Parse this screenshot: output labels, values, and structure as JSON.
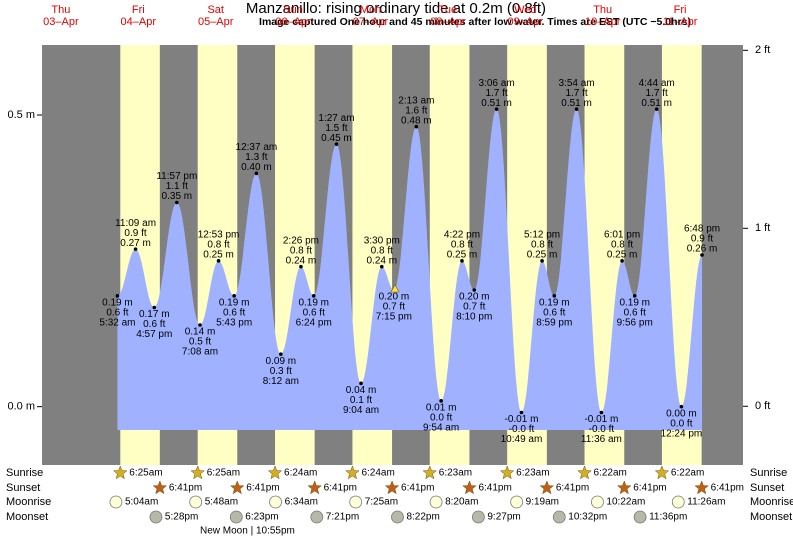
{
  "chart_data": {
    "type": "tide",
    "title": "Manzanillo: rising  ordinary tide at 0.2m (0.8ft)",
    "subtitle": "Image captured One hour and 45 minutes after low water. Times are EST (UTC −5.0hrs)",
    "ylim": [
      -0.1,
      0.62
    ],
    "yticks": [
      {
        "value": 0,
        "label": "0.0 m"
      },
      {
        "value": 0.5,
        "label": "0.5 m"
      }
    ],
    "y2lim": [
      -0.33,
      2.03
    ],
    "y2ticks": [
      {
        "value": 0,
        "label": "0 ft"
      },
      {
        "value": 1,
        "label": "1 ft"
      },
      {
        "value": 2,
        "label": "2 ft"
      }
    ],
    "row_labels": {
      "sunrise": "Sunrise",
      "sunset": "Sunset",
      "moonrise": "Moonrise",
      "moonset": "Moonset"
    },
    "new_moon": "New Moon | 10:55pm",
    "days": [
      {
        "name": "Thu",
        "date": "03–Apr"
      },
      {
        "name": "Fri",
        "date": "04–Apr",
        "sunrise": "6:25am",
        "sunset": "6:41pm",
        "moonrise": "5:04am",
        "moonset": "5:28pm",
        "tides": {
          "times": [
            "5:32 am",
            "11:09 am",
            "4:57 pm",
            "11:57 pm"
          ],
          "values": [
            0.19,
            0.27,
            0.17,
            0.35
          ],
          "value_labels": [
            "0.19 m",
            "0.27 m",
            "0.17 m",
            "0.35 m"
          ],
          "ft_labels": [
            "0.6 ft",
            "0.9 ft",
            "0.6 ft",
            "1.1 ft"
          ]
        }
      },
      {
        "name": "Sat",
        "date": "05–Apr",
        "sunrise": "6:25am",
        "sunset": "6:41pm",
        "moonrise": "5:48am",
        "moonset": "6:23pm",
        "tides": {
          "times": [
            "7:08 am",
            "12:53 pm",
            "5:43 pm"
          ],
          "values": [
            0.14,
            0.25,
            0.19
          ],
          "value_labels": [
            "0.14 m",
            "0.25 m",
            "0.19 m"
          ],
          "ft_labels": [
            "0.5 ft",
            "0.8 ft",
            "0.6 ft"
          ]
        }
      },
      {
        "name": "Sun",
        "date": "06–Apr",
        "sunrise": "6:24am",
        "sunset": "6:41pm",
        "moonrise": "6:34am",
        "moonset": "7:21pm",
        "tides": {
          "times": [
            "12:37 am",
            "8:12 am",
            "2:26 pm",
            "6:24 pm"
          ],
          "values": [
            0.4,
            0.09,
            0.24,
            0.19
          ],
          "value_labels": [
            "0.40 m",
            "0.09 m",
            "0.24 m",
            "0.19 m"
          ],
          "ft_labels": [
            "1.3 ft",
            "0.3 ft",
            "0.8 ft",
            "0.6 ft"
          ]
        }
      },
      {
        "name": "Mon",
        "date": "07–Apr",
        "sunrise": "6:24am",
        "sunset": "6:41pm",
        "moonrise": "7:25am",
        "moonset": "8:22pm",
        "tides": {
          "times": [
            "1:27 am",
            "9:04 am",
            "3:30 pm",
            "7:15 pm"
          ],
          "values": [
            0.45,
            0.04,
            0.24,
            0.2
          ],
          "value_labels": [
            "0.45 m",
            "0.04 m",
            "0.24 m",
            "0.20 m"
          ],
          "ft_labels": [
            "1.5 ft",
            "0.1 ft",
            "0.8 ft",
            "0.7 ft"
          ]
        }
      },
      {
        "name": "Tue",
        "date": "08–Apr",
        "sunrise": "6:23am",
        "sunset": "6:41pm",
        "moonrise": "8:20am",
        "moonset": "9:27pm",
        "tides": {
          "times": [
            "2:13 am",
            "9:54 am",
            "4:22 pm",
            "8:10 pm"
          ],
          "values": [
            0.48,
            0.01,
            0.25,
            0.2
          ],
          "value_labels": [
            "0.48 m",
            "0.01 m",
            "0.25 m",
            "0.20 m"
          ],
          "ft_labels": [
            "1.6 ft",
            "0.0 ft",
            "0.8 ft",
            "0.7 ft"
          ]
        }
      },
      {
        "name": "Wed",
        "date": "09–Apr",
        "sunrise": "6:23am",
        "sunset": "6:41pm",
        "moonrise": "9:19am",
        "moonset": "10:32pm",
        "tides": {
          "times": [
            "3:06 am",
            "10:49 am",
            "5:12 pm",
            "8:59 pm"
          ],
          "values": [
            0.51,
            -0.01,
            0.25,
            0.19
          ],
          "value_labels": [
            "0.51 m",
            "-0.01 m",
            "0.25 m",
            "0.19 m"
          ],
          "ft_labels": [
            "1.7 ft",
            "-0.0 ft",
            "0.8 ft",
            "0.6 ft"
          ]
        }
      },
      {
        "name": "Thu",
        "date": "10–Apr",
        "sunrise": "6:22am",
        "sunset": "6:41pm",
        "moonrise": "10:22am",
        "moonset": "11:36pm",
        "tides": {
          "times": [
            "3:54 am",
            "11:36 am",
            "6:01 pm",
            "9:56 pm"
          ],
          "values": [
            0.51,
            -0.01,
            0.25,
            0.19
          ],
          "value_labels": [
            "0.51 m",
            "-0.01 m",
            "0.25 m",
            "0.19 m"
          ],
          "ft_labels": [
            "1.7 ft",
            "-0.0 ft",
            "0.8 ft",
            "0.6 ft"
          ]
        }
      },
      {
        "name": "Fri",
        "date": "11–Apr",
        "sunrise": "6:22am",
        "sunset": "6:41pm",
        "moonrise": "11:26am",
        "tides": {
          "times": [
            "4:44 am",
            "12:24 pm",
            "6:48 pm"
          ],
          "values": [
            0.51,
            0.0,
            0.26
          ],
          "value_labels": [
            "0.51 m",
            "0.00 m",
            "0.26 m"
          ],
          "ft_labels": [
            "1.7 ft",
            "0.0 ft",
            "0.9 ft"
          ]
        }
      }
    ]
  }
}
